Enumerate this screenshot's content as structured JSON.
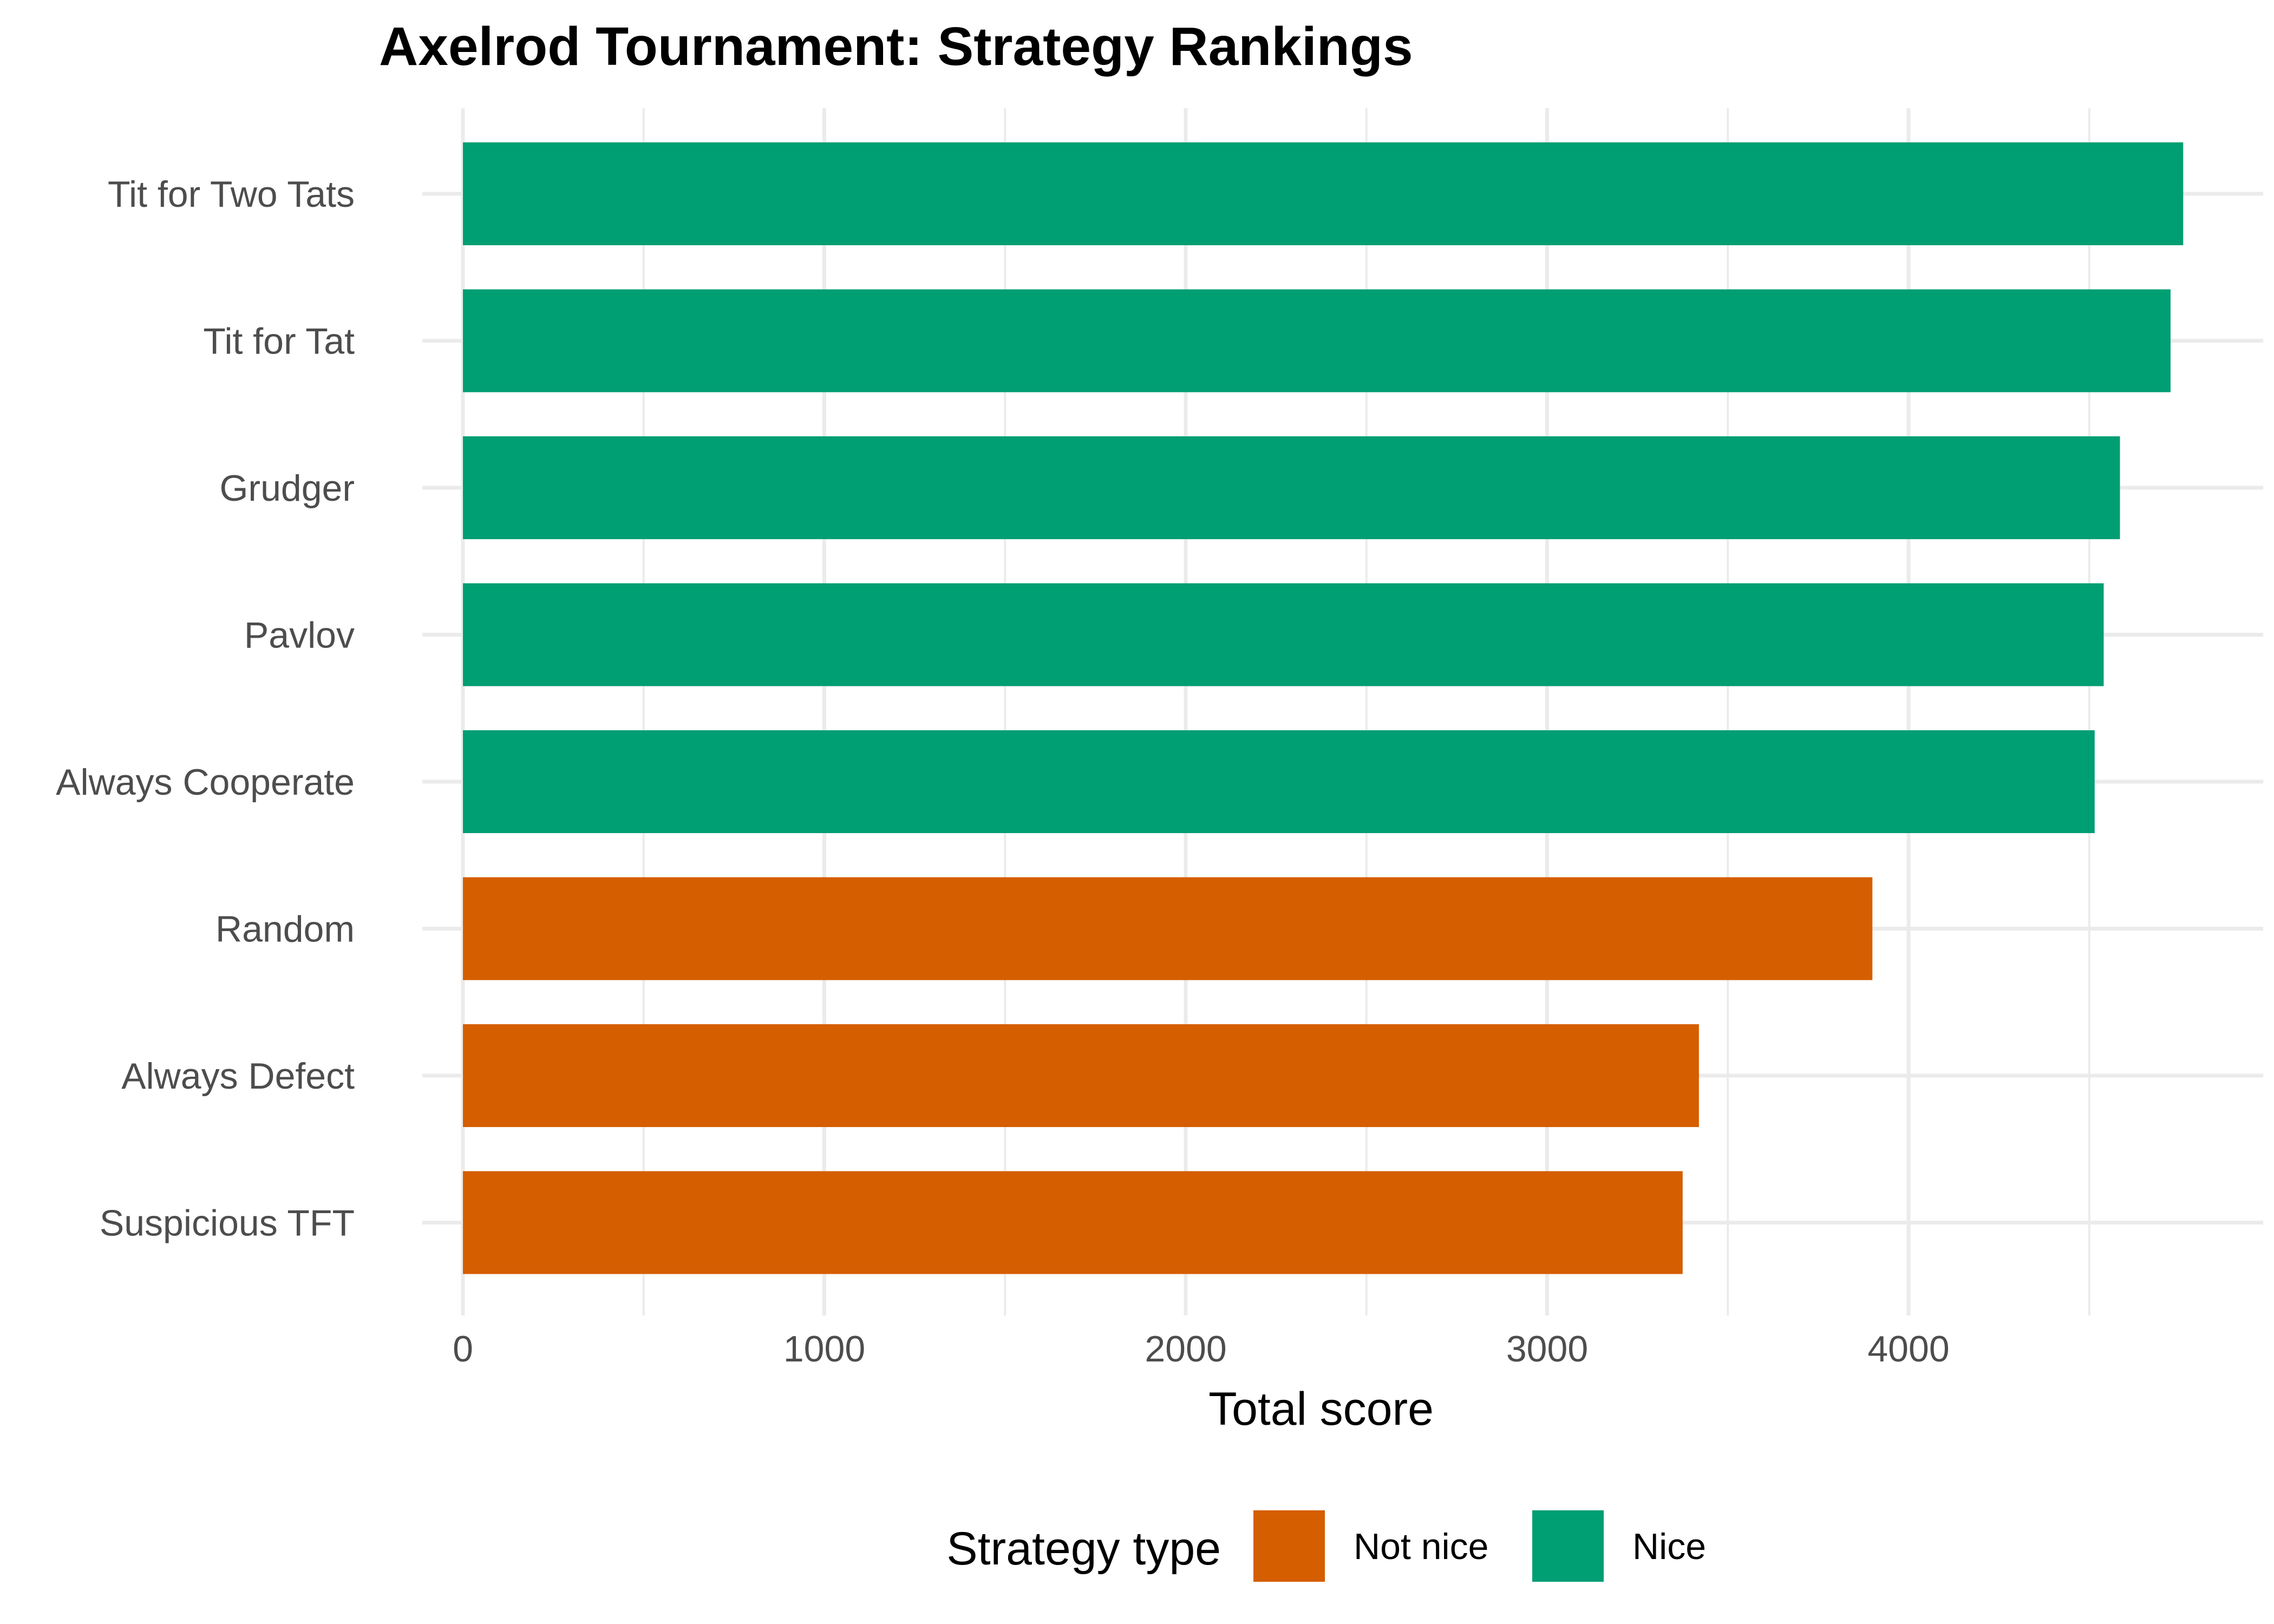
{
  "chart_data": {
    "type": "bar",
    "orientation": "horizontal",
    "title": "Axelrod Tournament: Strategy Rankings",
    "xlabel": "Total score",
    "ylabel": "",
    "xlim": [
      0,
      4800
    ],
    "x_ticks": [
      0,
      1000,
      2000,
      3000,
      4000
    ],
    "grid": true,
    "categories": [
      "Tit for Two Tats",
      "Tit for Tat",
      "Grudger",
      "Pavlov",
      "Always Cooperate",
      "Random",
      "Always Defect",
      "Suspicious TFT"
    ],
    "values": [
      4760,
      4725,
      4585,
      4540,
      4515,
      3900,
      3420,
      3375
    ],
    "groups": [
      "Nice",
      "Nice",
      "Nice",
      "Nice",
      "Nice",
      "Not nice",
      "Not nice",
      "Not nice"
    ],
    "legend": {
      "title": "Strategy type",
      "placement": "bottom",
      "entries": [
        {
          "label": "Not nice",
          "color": "#d55e00"
        },
        {
          "label": "Nice",
          "color": "#009e73"
        }
      ]
    }
  }
}
